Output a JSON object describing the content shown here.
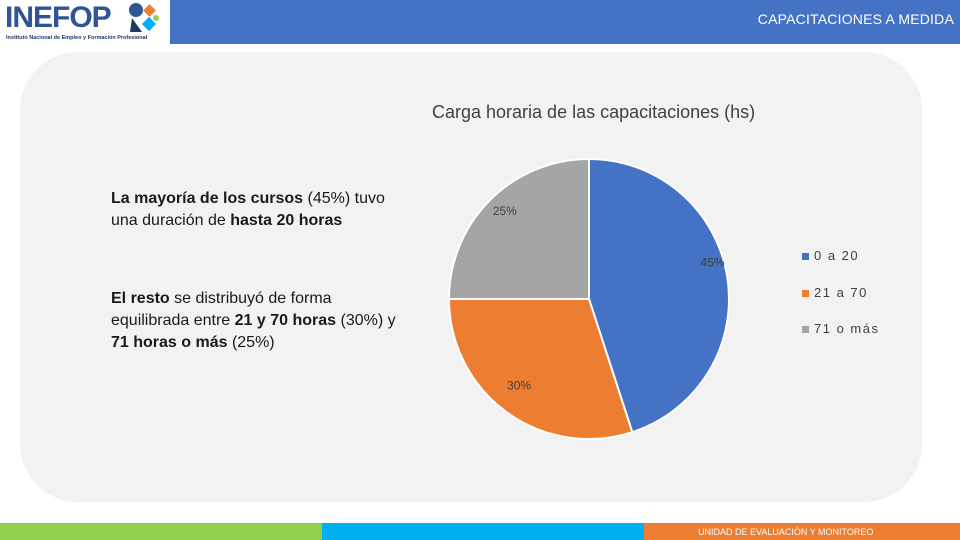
{
  "header": {
    "logo_text": "INEFOP",
    "logo_subtitle": "Instituto Nacional de Empleo y Formación Profesional",
    "title": "CAPACITACIONES A MEDIDA"
  },
  "notes": {
    "first": [
      {
        "text": "La mayoría de los cursos",
        "bold": true
      },
      {
        "text": " (45%) tuvo una duración de ",
        "bold": false
      },
      {
        "text": "hasta 20 horas",
        "bold": true
      }
    ],
    "second": [
      {
        "text": "El resto",
        "bold": true
      },
      {
        "text": " se distribuyó de forma equilibrada entre ",
        "bold": false
      },
      {
        "text": "21 y 70 horas",
        "bold": true
      },
      {
        "text": " (30%) y ",
        "bold": false
      },
      {
        "text": "71 horas o más",
        "bold": true
      },
      {
        "text": " (25%)",
        "bold": false
      }
    ]
  },
  "chart_data": {
    "type": "pie",
    "title": "Carga horaria de las capacitaciones (hs)",
    "categories": [
      "0 a 20",
      "21 a 70",
      "71 o más"
    ],
    "values": [
      45,
      30,
      25
    ],
    "labels": [
      "45%",
      "30%",
      "25%"
    ],
    "colors": [
      "#4472c4",
      "#ed7d31",
      "#a5a5a5"
    ],
    "start": "12 o'clock",
    "direction": "clockwise",
    "legend": "right"
  },
  "footer": {
    "text": "UNIDAD DE EVALUACIÓN Y MONITOREO"
  }
}
